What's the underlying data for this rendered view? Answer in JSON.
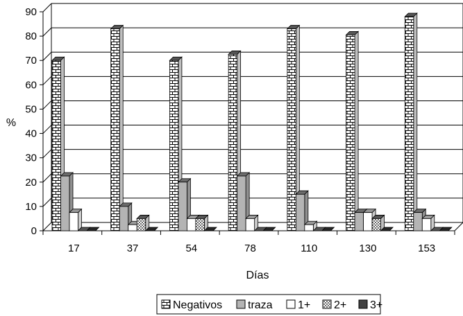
{
  "chart_data": {
    "type": "bar",
    "title": "",
    "xlabel": "Días",
    "ylabel": "%",
    "ylim": [
      0,
      90
    ],
    "yticks": [
      0,
      10,
      20,
      30,
      40,
      50,
      60,
      70,
      80,
      90
    ],
    "categories": [
      "17",
      "37",
      "54",
      "78",
      "110",
      "130",
      "153"
    ],
    "series": [
      {
        "name": "Negativos",
        "values": [
          70,
          83,
          70,
          72.5,
          83,
          80.5,
          88
        ],
        "pattern": "brick",
        "color": "#ffffff"
      },
      {
        "name": "traza",
        "values": [
          22.5,
          10,
          20,
          22.5,
          15,
          7.5,
          7.5
        ],
        "pattern": "solid",
        "color": "#b4b4b4"
      },
      {
        "name": "1+",
        "values": [
          7.5,
          2.5,
          5,
          5,
          2.5,
          7.5,
          5
        ],
        "pattern": "solid",
        "color": "#ffffff"
      },
      {
        "name": "2+",
        "values": [
          0,
          5,
          5,
          0,
          0,
          5,
          0
        ],
        "pattern": "dots",
        "color": "#ffffff"
      },
      {
        "name": "3+",
        "values": [
          0,
          0,
          0,
          0,
          0,
          0,
          0
        ],
        "pattern": "solid",
        "color": "#404040"
      }
    ],
    "grid": true,
    "legend_position": "bottom"
  }
}
